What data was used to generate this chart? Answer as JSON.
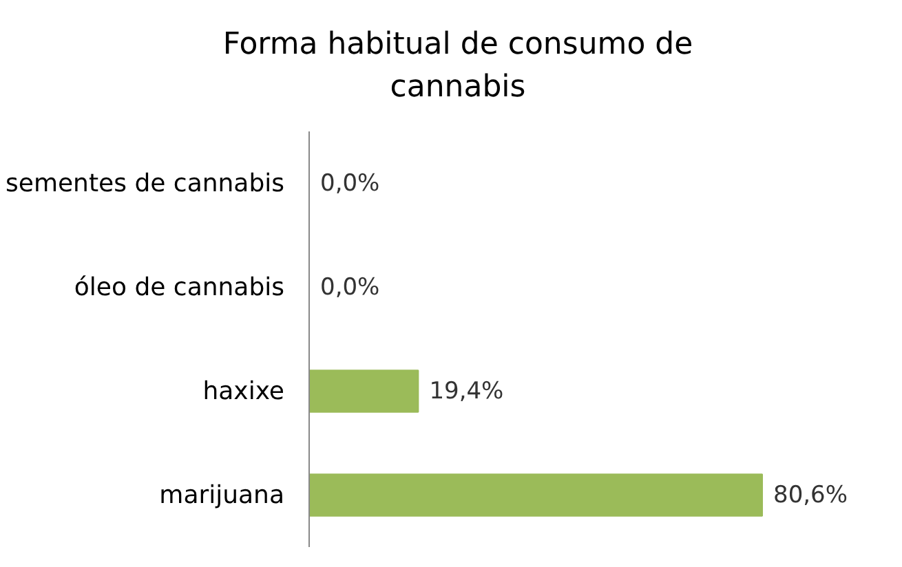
{
  "chart_data": {
    "type": "bar",
    "orientation": "horizontal",
    "title": "Forma habitual de consumo de cannabis",
    "categories": [
      "sementes de cannabis",
      "óleo de cannabis",
      "haxixe",
      "marijuana"
    ],
    "values": [
      0.0,
      0.0,
      19.4,
      80.6
    ],
    "value_labels": [
      "0,0%",
      "0,0%",
      "19,4%",
      "80,6%"
    ],
    "color": "#9bbb59",
    "grid": false,
    "tick_labels": "y"
  }
}
